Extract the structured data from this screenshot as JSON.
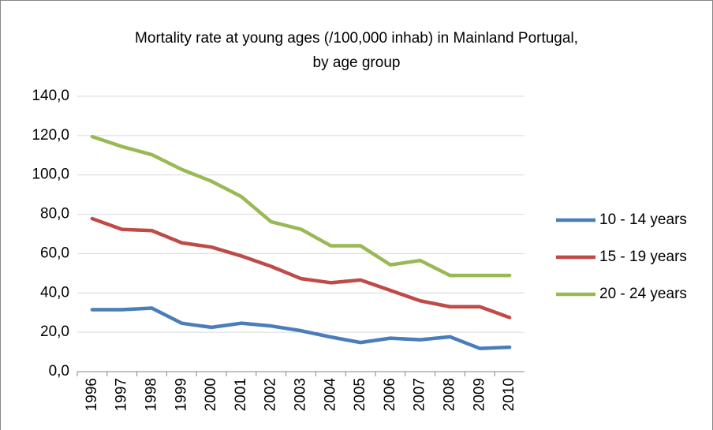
{
  "chart_data": {
    "type": "line",
    "title": [
      "Mortality rate at young ages (/100,000 inhab) in Mainland Portugal,",
      "by age group"
    ],
    "categories": [
      "1996",
      "1997",
      "1998",
      "1999",
      "2000",
      "2001",
      "2002",
      "2003",
      "2004",
      "2005",
      "2006",
      "2007",
      "2008",
      "2009",
      "2010"
    ],
    "series": [
      {
        "name": "10 - 14 years",
        "color": "#4a7ebb",
        "values": [
          31.5,
          31.5,
          32.3,
          24.6,
          22.5,
          24.6,
          23.2,
          20.8,
          17.6,
          14.8,
          17.0,
          16.2,
          17.7,
          11.8,
          12.4
        ]
      },
      {
        "name": "15 - 19 years",
        "color": "#be4b48",
        "values": [
          77.8,
          72.3,
          71.7,
          65.5,
          63.3,
          58.8,
          53.5,
          47.3,
          45.2,
          46.6,
          41.3,
          36.0,
          33.0,
          33.0,
          27.5
        ]
      },
      {
        "name": "20 - 24 years",
        "color": "#98b954",
        "values": [
          119.5,
          114.4,
          110.3,
          102.8,
          96.8,
          89.0,
          76.2,
          72.4,
          64.0,
          64.0,
          54.3,
          56.5,
          48.9,
          48.9,
          48.9
        ]
      }
    ],
    "ylim": [
      0,
      140
    ],
    "yticks": [
      {
        "value": 0,
        "label": "0,0"
      },
      {
        "value": 20,
        "label": "20,0"
      },
      {
        "value": 40,
        "label": "40,0"
      },
      {
        "value": 60,
        "label": "60,0"
      },
      {
        "value": 80,
        "label": "80,0"
      },
      {
        "value": 100,
        "label": "100,0"
      },
      {
        "value": 120,
        "label": "120,0"
      },
      {
        "value": 140,
        "label": "140,0"
      }
    ],
    "grid": true,
    "legend": "right"
  }
}
